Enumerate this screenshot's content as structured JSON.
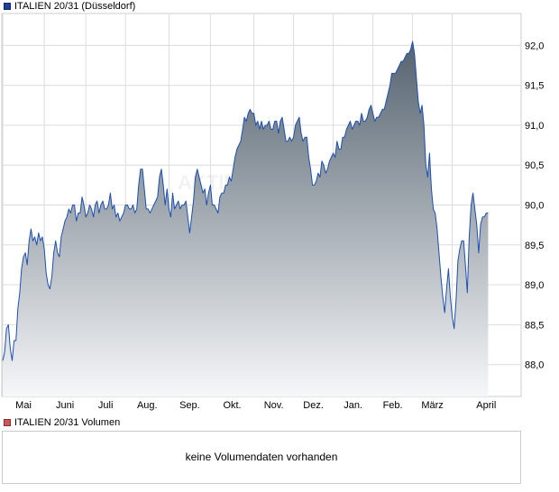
{
  "price_legend": "ITALIEN 20/31 (Düsseldorf)",
  "volume_legend": "ITALIEN 20/31 Volumen",
  "volume_message": "keine Volumendaten vorhanden",
  "watermark": "AKTIEN",
  "colors": {
    "line": "#1c4fb0",
    "fill_top": "#55636f",
    "fill_bottom": "#f6f7f9",
    "grid": "#dcdcdc",
    "frame": "#cccccc"
  },
  "chart_data": {
    "type": "area",
    "x_tick_labels": [
      "Mai",
      "Juni",
      "Juli",
      "Aug.",
      "Sep.",
      "Okt.",
      "Nov.",
      "Dez.",
      "Jan.",
      "Feb.",
      "März",
      "April"
    ],
    "y_tick_labels": [
      "88,0",
      "88,5",
      "89,0",
      "89,5",
      "90,0",
      "90,5",
      "91,0",
      "91,5",
      "92,0"
    ],
    "y_ticks": [
      88.0,
      88.5,
      89.0,
      89.5,
      90.0,
      90.5,
      91.0,
      91.5,
      92.0
    ],
    "ylim": [
      87.6,
      92.4
    ],
    "month_starts": [
      0,
      22,
      44,
      65,
      88,
      110,
      133,
      154,
      175,
      196,
      217,
      238
    ],
    "n_days": 275,
    "grid": true,
    "values": [
      88.05,
      88.15,
      88.45,
      88.5,
      88.2,
      88.05,
      88.3,
      88.3,
      88.7,
      88.9,
      89.2,
      89.35,
      89.4,
      89.25,
      89.55,
      89.7,
      89.55,
      89.6,
      89.5,
      89.65,
      89.55,
      89.6,
      89.45,
      89.15,
      89.0,
      88.95,
      89.1,
      89.4,
      89.55,
      89.4,
      89.35,
      89.6,
      89.7,
      89.8,
      89.85,
      89.95,
      89.9,
      90.0,
      90.0,
      89.8,
      89.9,
      89.9,
      90.1,
      90.0,
      89.85,
      89.9,
      90.0,
      89.95,
      89.85,
      90.0,
      90.05,
      89.9,
      90.0,
      90.05,
      89.95,
      89.95,
      90.0,
      90.15,
      89.95,
      90.0,
      89.85,
      89.9,
      89.8,
      89.85,
      89.9,
      90.0,
      90.0,
      89.95,
      89.95,
      90.0,
      89.9,
      89.95,
      90.25,
      90.45,
      90.45,
      90.2,
      89.95,
      89.95,
      89.9,
      89.95,
      90.0,
      90.05,
      90.1,
      90.35,
      90.45,
      90.25,
      90.0,
      90.2,
      89.95,
      89.85,
      90.15,
      89.95,
      90.0,
      90.05,
      89.95,
      90.0,
      90.0,
      90.05,
      89.85,
      89.65,
      89.85,
      90.05,
      90.35,
      90.45,
      90.35,
      90.25,
      90.15,
      90.2,
      90.0,
      90.15,
      90.25,
      90.0,
      90.0,
      89.95,
      89.9,
      90.1,
      90.15,
      90.15,
      90.25,
      90.25,
      90.35,
      90.3,
      90.45,
      90.6,
      90.7,
      90.75,
      90.8,
      90.95,
      91.1,
      91.05,
      91.15,
      91.2,
      91.15,
      91.15,
      91.0,
      91.05,
      90.95,
      91.05,
      90.95,
      91.0,
      91.0,
      91.05,
      90.95,
      90.95,
      91.05,
      91.05,
      90.9,
      91.05,
      91.1,
      90.95,
      90.8,
      90.8,
      90.85,
      90.8,
      90.85,
      91.0,
      91.05,
      91.1,
      90.9,
      90.8,
      90.85,
      90.85,
      90.6,
      90.45,
      90.25,
      90.25,
      90.3,
      90.4,
      90.35,
      90.55,
      90.5,
      90.4,
      90.45,
      90.55,
      90.6,
      90.65,
      90.6,
      90.8,
      90.7,
      90.7,
      90.85,
      90.85,
      90.95,
      91.0,
      91.05,
      90.95,
      91.0,
      91.05,
      91.05,
      91.0,
      91.15,
      91.05,
      91.05,
      91.1,
      91.2,
      91.25,
      91.15,
      91.05,
      91.1,
      91.1,
      91.15,
      91.2,
      91.2,
      91.3,
      91.4,
      91.5,
      91.65,
      91.65,
      91.65,
      91.7,
      91.75,
      91.8,
      91.8,
      91.85,
      91.9,
      91.9,
      91.95,
      92.05,
      91.9,
      91.6,
      91.3,
      91.15,
      91.25,
      91.0,
      90.5,
      90.35,
      90.65,
      90.2,
      89.95,
      89.9,
      89.7,
      89.4,
      89.1,
      88.85,
      88.65,
      88.95,
      89.2,
      88.85,
      88.6,
      88.45,
      88.8,
      89.3,
      89.45,
      89.55,
      89.55,
      89.25,
      88.9,
      89.6,
      90.0,
      90.15,
      89.95,
      89.75,
      89.4,
      89.75,
      89.85,
      89.85,
      89.9,
      89.9
    ]
  }
}
